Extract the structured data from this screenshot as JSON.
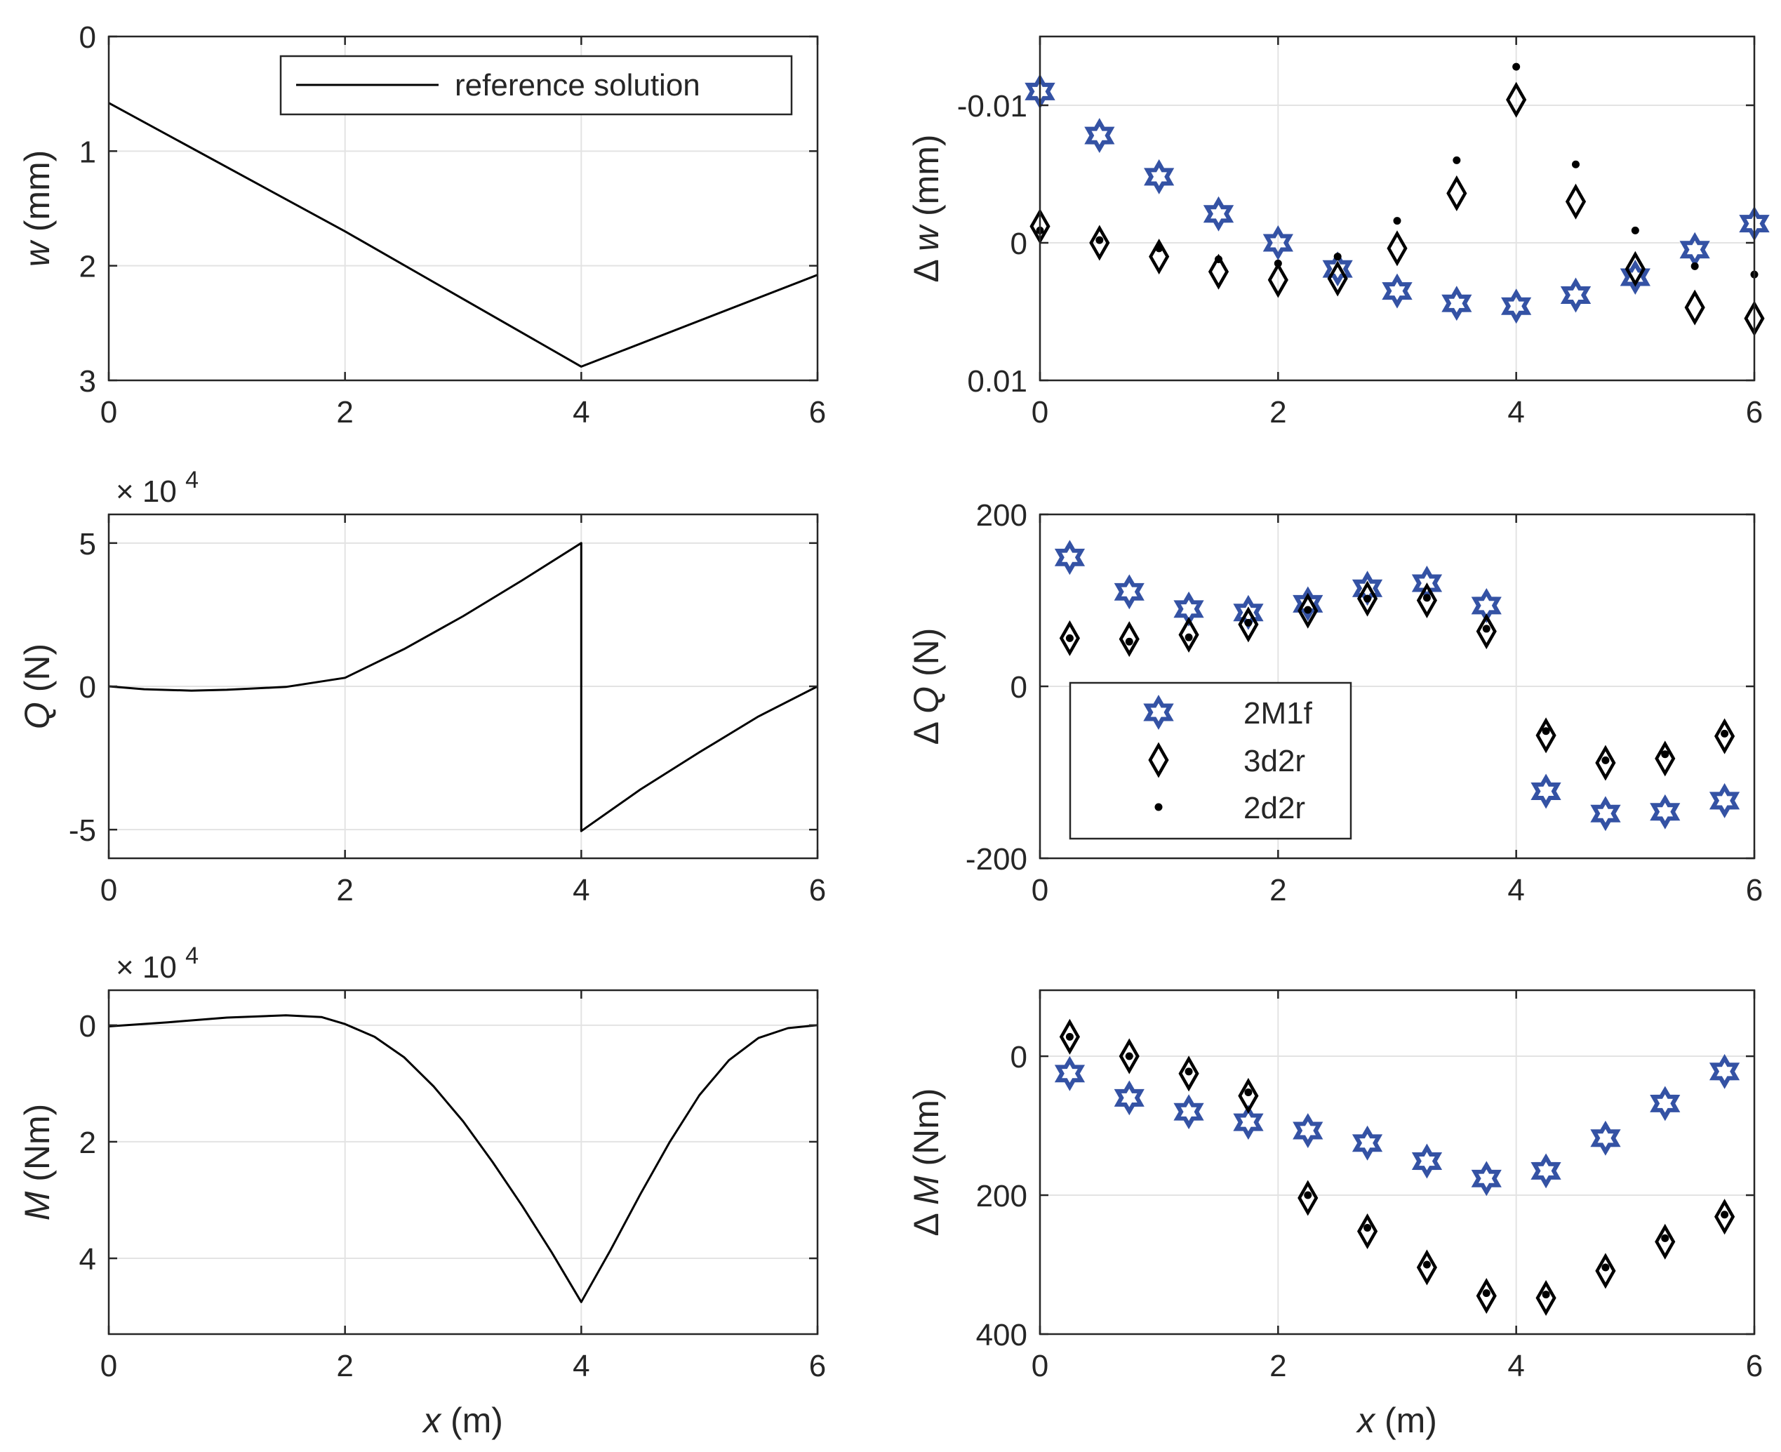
{
  "colors": {
    "reference": "#000000",
    "2M1f": "#3452A4",
    "3d2r": "#000000",
    "2d2r": "#000000",
    "grid": "#e3e3e3",
    "axis": "#262626"
  },
  "chart_data": [
    {
      "id": "w",
      "type": "line",
      "ylabel_sym": "w",
      "ylabel_unit": " (mm)",
      "ylim": [
        0,
        3
      ],
      "reverse_y": true,
      "xlim": [
        0,
        6
      ],
      "xticks": [
        0,
        2,
        4,
        6
      ],
      "yticks": [
        0,
        1,
        2,
        3
      ],
      "ytick_labels": [
        "0",
        "1",
        "2",
        "3"
      ],
      "grid": true,
      "legend": {
        "entries": [
          "reference solution"
        ],
        "placement": "top-right"
      },
      "series": [
        {
          "name": "reference solution",
          "x": [
            0,
            2,
            4,
            6
          ],
          "y": [
            0.58,
            1.7,
            2.88,
            2.08
          ],
          "shape": "segmented"
        }
      ]
    },
    {
      "id": "dw",
      "type": "scatter",
      "ylabel_sym": "w",
      "ylabel_prefix": "Δ",
      "ylabel_unit": " (mm)",
      "ylim": [
        -0.015,
        0.01
      ],
      "reverse_y": true,
      "xlim": [
        0,
        6
      ],
      "xticks": [
        0,
        2,
        4,
        6
      ],
      "yticks": [
        -0.01,
        0,
        0.01
      ],
      "ytick_labels": [
        "-0.01",
        "0",
        "0.01"
      ],
      "grid": true,
      "series": [
        {
          "name": "2M1f",
          "marker": "hexagram",
          "x": [
            0,
            0.5,
            1,
            1.5,
            2,
            2.5,
            3,
            3.5,
            4,
            4.5,
            5,
            5.5,
            6
          ],
          "y": [
            -0.011,
            -0.0078,
            -0.0048,
            -0.0021,
            0,
            0.0019,
            0.0035,
            0.0044,
            0.0046,
            0.0038,
            0.0025,
            0.0005,
            -0.0014
          ]
        },
        {
          "name": "3d2r",
          "marker": "diamond",
          "x": [
            0,
            0.5,
            1,
            1.5,
            2,
            2.5,
            3,
            3.5,
            4,
            4.5,
            5,
            5.5,
            6
          ],
          "y": [
            -0.0012,
            0,
            0.001,
            0.0021,
            0.0027,
            0.0026,
            0.0004,
            -0.0036,
            -0.0104,
            -0.003,
            0.0019,
            0.0047,
            0.0055
          ]
        },
        {
          "name": "2d2r",
          "marker": "dot",
          "x": [
            0,
            0.5,
            1,
            1.5,
            2,
            2.5,
            3,
            3.5,
            4,
            4.5,
            5,
            5.5,
            6
          ],
          "y": [
            -0.0009,
            -0.0002,
            0.0004,
            0.0012,
            0.0015,
            0.001,
            -0.0016,
            -0.006,
            -0.0128,
            -0.0057,
            -0.0009,
            0.0017,
            0.0023
          ]
        }
      ]
    },
    {
      "id": "Q",
      "type": "line",
      "ylabel_sym": "Q",
      "ylabel_unit": " (N)",
      "exponent": "× 10⁴",
      "ylim": [
        -6,
        6
      ],
      "reverse_y": false,
      "xlim": [
        0,
        6
      ],
      "xticks": [
        0,
        2,
        4,
        6
      ],
      "yticks": [
        -5,
        0,
        5
      ],
      "ytick_labels": [
        "-5",
        "0",
        "5"
      ],
      "grid": true,
      "series": [
        {
          "name": "reference solution",
          "x": [
            0,
            0.3,
            0.7,
            1.0,
            1.5,
            2,
            2.5,
            3,
            3.5,
            4,
            4,
            4.5,
            5,
            5.5,
            6
          ],
          "y": [
            0,
            -0.1,
            -0.15,
            -0.12,
            -0.02,
            0.3,
            1.3,
            2.45,
            3.7,
            5.0,
            -5.05,
            -3.6,
            -2.3,
            -1.05,
            0
          ]
        }
      ]
    },
    {
      "id": "dQ",
      "type": "scatter",
      "ylabel_sym": "Q",
      "ylabel_prefix": "Δ",
      "ylabel_unit": " (N)",
      "ylim": [
        -200,
        200
      ],
      "reverse_y": false,
      "xlim": [
        0,
        6
      ],
      "xticks": [
        0,
        2,
        4,
        6
      ],
      "yticks": [
        -200,
        0,
        200
      ],
      "ytick_labels": [
        "-200",
        "0",
        "200"
      ],
      "grid": true,
      "legend": {
        "entries": [
          "2M1f",
          "3d2r",
          "2d2r"
        ],
        "placement": "center-left"
      },
      "series": [
        {
          "name": "2M1f",
          "marker": "hexagram",
          "x": [
            0.25,
            0.75,
            1.25,
            1.75,
            2.25,
            2.75,
            3.25,
            3.75,
            4.25,
            4.75,
            5.25,
            5.75
          ],
          "y": [
            150,
            110,
            90,
            86,
            96,
            114,
            120,
            94,
            -122,
            -148,
            -146,
            -133
          ]
        },
        {
          "name": "3d2r",
          "marker": "diamond",
          "x": [
            0.25,
            0.75,
            1.25,
            1.75,
            2.25,
            2.75,
            3.25,
            3.75,
            4.25,
            4.75,
            5.25,
            5.75
          ],
          "y": [
            56,
            55,
            60,
            72,
            88,
            102,
            100,
            64,
            -57,
            -89,
            -84,
            -58
          ]
        },
        {
          "name": "2d2r",
          "marker": "dot",
          "x": [
            0.25,
            0.75,
            1.25,
            1.75,
            2.25,
            2.75,
            3.25,
            3.75,
            4.25,
            4.75,
            5.25,
            5.75
          ],
          "y": [
            56,
            52,
            57,
            74,
            89,
            102,
            103,
            67,
            -52,
            -86,
            -79,
            -55
          ]
        }
      ]
    },
    {
      "id": "M",
      "type": "line",
      "ylabel_sym": "M",
      "ylabel_unit": " (Nm)",
      "exponent": "× 10⁴",
      "ylim": [
        -0.6,
        5.3
      ],
      "reverse_y": true,
      "xlim": [
        0,
        6
      ],
      "xticks": [
        0,
        2,
        4,
        6
      ],
      "yticks": [
        0,
        2,
        4
      ],
      "ytick_labels": [
        "0",
        "2",
        "4"
      ],
      "grid": true,
      "series": [
        {
          "name": "reference solution",
          "x": [
            0,
            0.5,
            1.0,
            1.5,
            1.8,
            2.0,
            2.25,
            2.5,
            2.75,
            3.0,
            3.25,
            3.5,
            3.75,
            4.0,
            4.25,
            4.5,
            4.75,
            5.0,
            5.25,
            5.5,
            5.75,
            6.0
          ],
          "y": [
            0.02,
            -0.05,
            -0.13,
            -0.17,
            -0.14,
            -0.02,
            0.2,
            0.55,
            1.05,
            1.65,
            2.35,
            3.1,
            3.9,
            4.75,
            3.85,
            2.9,
            2.0,
            1.2,
            0.6,
            0.22,
            0.05,
            0.0
          ]
        }
      ]
    },
    {
      "id": "dM",
      "type": "scatter",
      "ylabel_sym": "M",
      "ylabel_prefix": "Δ",
      "ylabel_unit": " (Nm)",
      "ylim": [
        -95,
        400
      ],
      "reverse_y": true,
      "xlim": [
        0,
        6
      ],
      "xticks": [
        0,
        2,
        4,
        6
      ],
      "yticks": [
        0,
        200,
        400
      ],
      "ytick_labels": [
        "0",
        "200",
        "400"
      ],
      "grid": true,
      "series": [
        {
          "name": "2M1f",
          "marker": "hexagram",
          "x": [
            0.25,
            0.75,
            1.25,
            1.75,
            2.25,
            2.75,
            3.25,
            3.75,
            4.25,
            4.75,
            5.25,
            5.75
          ],
          "y": [
            25,
            60,
            80,
            95,
            107,
            125,
            151,
            176,
            165,
            118,
            68,
            22
          ]
        },
        {
          "name": "3d2r",
          "marker": "diamond",
          "x": [
            0.25,
            0.75,
            1.25,
            1.75,
            2.25,
            2.75,
            3.25,
            3.75,
            4.25,
            4.75,
            5.25,
            5.75
          ],
          "y": [
            -28,
            0,
            25,
            57,
            204,
            252,
            304,
            345,
            348,
            309,
            267,
            231
          ]
        },
        {
          "name": "2d2r",
          "marker": "dot",
          "x": [
            0.25,
            0.75,
            1.25,
            1.75,
            2.25,
            2.75,
            3.25,
            3.75,
            4.25,
            4.75,
            5.25,
            5.75
          ],
          "y": [
            -28,
            0,
            22,
            52,
            200,
            247,
            300,
            341,
            343,
            304,
            262,
            228
          ]
        }
      ]
    }
  ],
  "xlabel_sym": "x",
  "xlabel_unit": " (m)"
}
